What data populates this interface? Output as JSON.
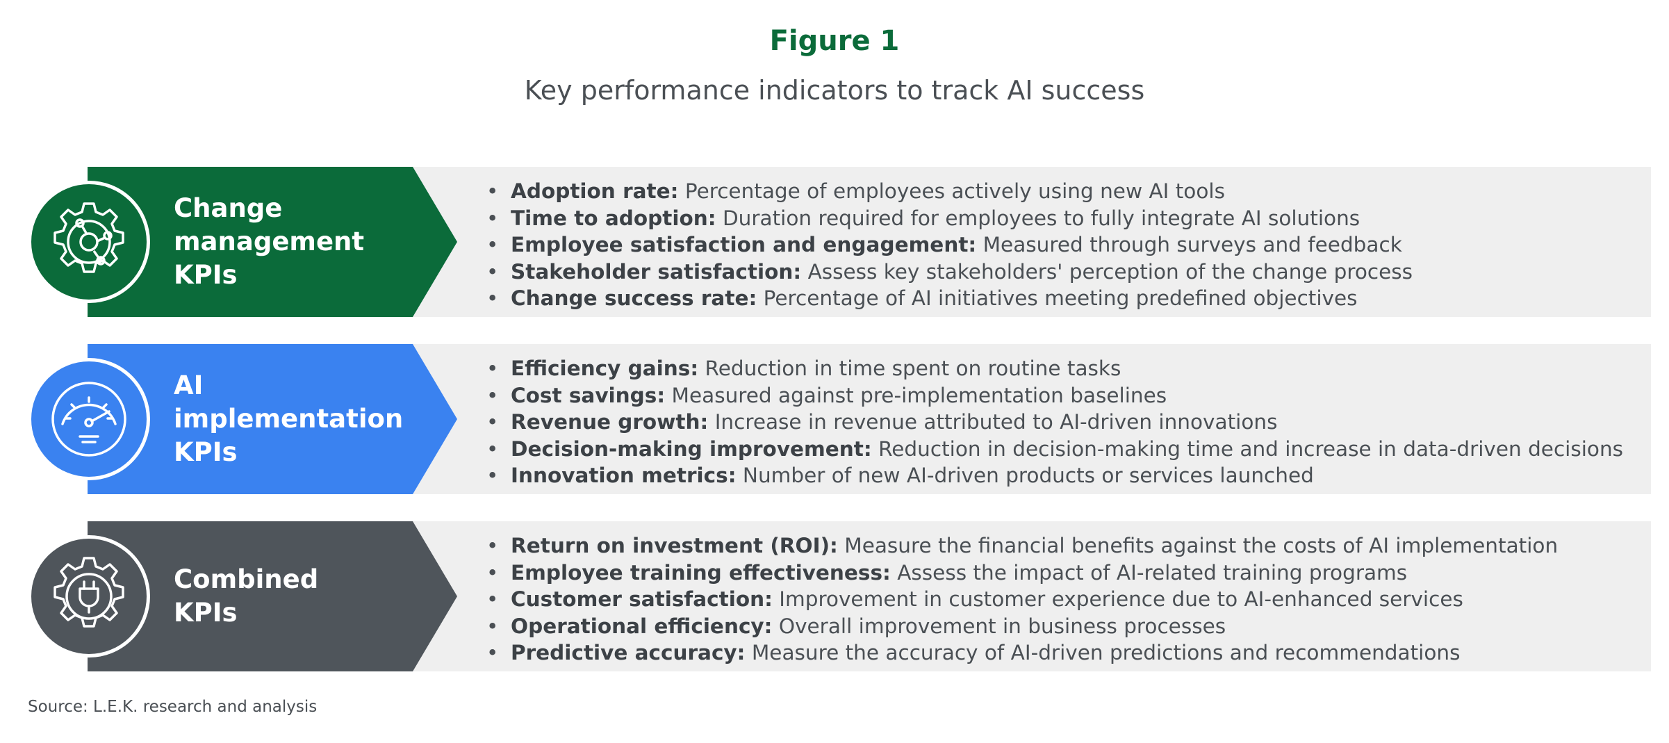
{
  "figure_label": "Figure 1",
  "title": "Key performance indicators to track AI success",
  "source": "Source: L.E.K. research and analysis",
  "colors": {
    "green": "#0b6b3a",
    "blue": "#3a82f0",
    "gray": "#4f555b",
    "panel": "#efefef"
  },
  "categories": [
    {
      "name_lines": [
        "Change",
        "management",
        "KPIs"
      ],
      "icon": "gear-network-icon",
      "items": [
        {
          "term": "Adoption rate:",
          "desc": "Percentage of employees actively using new AI tools"
        },
        {
          "term": "Time to adoption:",
          "desc": "Duration required for employees to fully integrate AI solutions"
        },
        {
          "term": "Employee satisfaction and engagement:",
          "desc": "Measured through surveys and feedback"
        },
        {
          "term": "Stakeholder satisfaction:",
          "desc": "Assess key stakeholders' perception of the change process"
        },
        {
          "term": "Change success rate:",
          "desc": "Percentage of AI initiatives meeting predefined objectives"
        }
      ]
    },
    {
      "name_lines": [
        "AI",
        "implementation",
        "KPIs"
      ],
      "icon": "gauge-icon",
      "items": [
        {
          "term": "Efficiency gains:",
          "desc": "Reduction in time spent on routine tasks"
        },
        {
          "term": "Cost savings:",
          "desc": "Measured against pre-implementation baselines"
        },
        {
          "term": "Revenue growth:",
          "desc": "Increase in revenue attributed to AI-driven innovations"
        },
        {
          "term": "Decision-making improvement:",
          "desc": "Reduction in decision-making time and increase in data-driven decisions"
        },
        {
          "term": "Innovation metrics:",
          "desc": "Number of new AI-driven products or services launched"
        }
      ]
    },
    {
      "name_lines": [
        "Combined",
        "KPIs"
      ],
      "icon": "gear-plug-icon",
      "items": [
        {
          "term": "Return on investment (ROI):",
          "desc": "Measure the financial benefits against the costs of AI implementation"
        },
        {
          "term": "Employee training effectiveness:",
          "desc": "Assess the impact of AI-related training programs"
        },
        {
          "term": "Customer satisfaction:",
          "desc": "Improvement in customer experience due to AI-enhanced services"
        },
        {
          "term": "Operational efficiency:",
          "desc": "Overall improvement in business processes"
        },
        {
          "term": "Predictive accuracy:",
          "desc": "Measure the accuracy of AI-driven predictions and recommendations"
        }
      ]
    }
  ]
}
